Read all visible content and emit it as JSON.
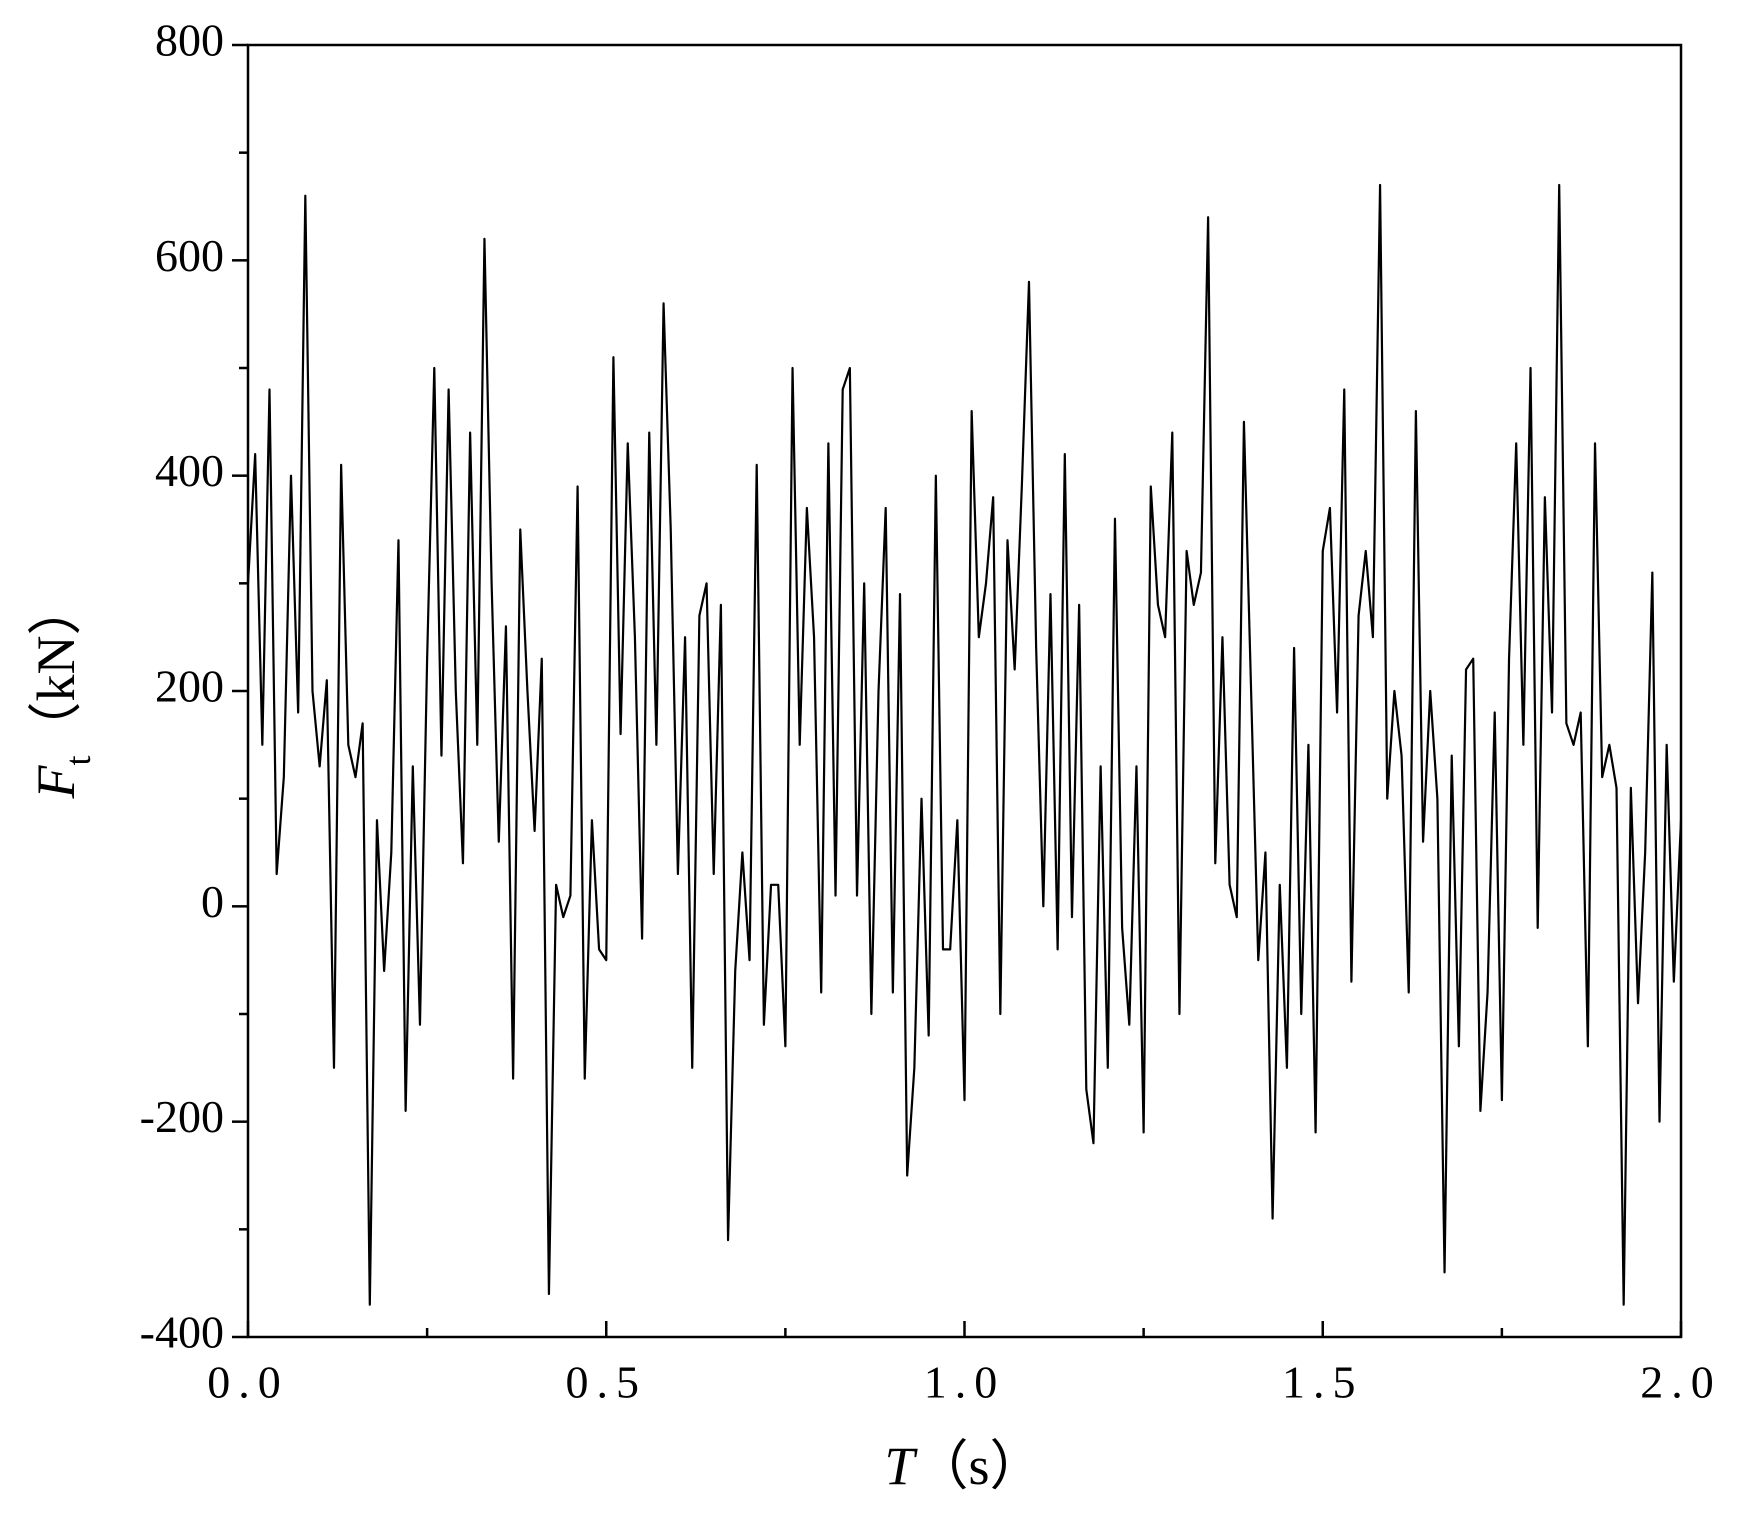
{
  "chart_data": {
    "type": "line",
    "xlabel_symbol": "T",
    "xlabel_unit": "（s）",
    "ylabel_symbol": "F",
    "ylabel_subscript": "t",
    "ylabel_unit": "（kN）",
    "color": "#000000",
    "xlim": [
      0,
      2
    ],
    "ylim": [
      -400,
      800
    ],
    "xticks": [
      {
        "value": 0,
        "label": "0.0"
      },
      0.5,
      {
        "value": 1,
        "label": "1.0"
      },
      1.5,
      {
        "value": 2,
        "label": "2.0"
      }
    ],
    "xminorticks": [
      0.25,
      0.75,
      1.25,
      1.75
    ],
    "yticks": [
      -400,
      -200,
      0,
      200,
      400,
      600,
      800
    ],
    "yminorticks": [
      -300,
      -100,
      100,
      300,
      500,
      700
    ],
    "grid": false,
    "x": [
      0,
      0.01,
      0.02,
      0.03,
      0.04,
      0.05,
      0.06,
      0.07,
      0.08,
      0.09,
      0.1,
      0.11,
      0.12,
      0.13,
      0.14,
      0.15,
      0.16,
      0.17,
      0.18,
      0.19,
      0.2,
      0.21,
      0.22,
      0.23,
      0.24,
      0.25,
      0.26,
      0.27,
      0.28,
      0.29,
      0.3,
      0.31,
      0.32,
      0.33,
      0.34,
      0.35,
      0.36,
      0.37,
      0.38,
      0.39,
      0.4,
      0.41,
      0.42,
      0.43,
      0.44,
      0.45,
      0.46,
      0.47,
      0.48,
      0.49,
      0.5,
      0.51,
      0.52,
      0.53,
      0.54,
      0.55,
      0.56,
      0.57,
      0.58,
      0.59,
      0.6,
      0.61,
      0.62,
      0.63,
      0.64,
      0.65,
      0.66,
      0.67,
      0.68,
      0.69,
      0.7,
      0.71,
      0.72,
      0.73,
      0.74,
      0.75,
      0.76,
      0.77,
      0.78,
      0.79,
      0.8,
      0.81,
      0.82,
      0.83,
      0.84,
      0.85,
      0.86,
      0.87,
      0.88,
      0.89,
      0.9,
      0.91,
      0.92,
      0.93,
      0.94,
      0.95,
      0.96,
      0.97,
      0.98,
      0.99,
      1,
      1.01,
      1.02,
      1.03,
      1.04,
      1.05,
      1.06,
      1.07,
      1.08,
      1.09,
      1.1,
      1.11,
      1.12,
      1.13,
      1.14,
      1.15,
      1.16,
      1.17,
      1.18,
      1.19,
      1.2,
      1.21,
      1.22,
      1.23,
      1.24,
      1.25,
      1.26,
      1.27,
      1.28,
      1.29,
      1.3,
      1.31,
      1.32,
      1.33,
      1.34,
      1.35,
      1.36,
      1.37,
      1.38,
      1.39,
      1.4,
      1.41,
      1.42,
      1.43,
      1.44,
      1.45,
      1.46,
      1.47,
      1.48,
      1.49,
      1.5,
      1.51,
      1.52,
      1.53,
      1.54,
      1.55,
      1.56,
      1.57,
      1.58,
      1.59,
      1.6,
      1.61,
      1.62,
      1.63,
      1.64,
      1.65,
      1.66,
      1.67,
      1.68,
      1.69,
      1.7,
      1.71,
      1.72,
      1.73,
      1.74,
      1.75,
      1.76,
      1.77,
      1.78,
      1.79,
      1.8,
      1.81,
      1.82,
      1.83,
      1.84,
      1.85,
      1.86,
      1.87,
      1.88,
      1.89,
      1.9,
      1.91,
      1.92,
      1.93,
      1.94,
      1.95,
      1.96,
      1.97,
      1.98,
      1.99,
      2
    ],
    "values": [
      300,
      420,
      150,
      480,
      30,
      120,
      400,
      180,
      660,
      200,
      130,
      210,
      -150,
      410,
      150,
      120,
      170,
      -370,
      80,
      -60,
      50,
      340,
      -190,
      130,
      -110,
      230,
      500,
      140,
      480,
      200,
      40,
      440,
      150,
      620,
      300,
      60,
      260,
      -160,
      350,
      200,
      70,
      230,
      -360,
      20,
      -10,
      10,
      390,
      -160,
      80,
      -40,
      -50,
      510,
      160,
      430,
      250,
      -30,
      440,
      150,
      560,
      350,
      30,
      250,
      -150,
      270,
      300,
      30,
      280,
      -310,
      -60,
      50,
      -50,
      410,
      -110,
      20,
      20,
      -130,
      500,
      150,
      370,
      250,
      -80,
      430,
      10,
      480,
      500,
      10,
      300,
      -100,
      200,
      370,
      -80,
      290,
      -250,
      -150,
      100,
      -120,
      400,
      -40,
      -40,
      80,
      -180,
      460,
      250,
      300,
      380,
      -100,
      340,
      220,
      390,
      580,
      240,
      0,
      290,
      -40,
      420,
      -10,
      280,
      -170,
      -220,
      130,
      -150,
      360,
      -20,
      -110,
      130,
      -210,
      390,
      280,
      250,
      440,
      -100,
      330,
      280,
      310,
      640,
      40,
      250,
      20,
      -10,
      450,
      200,
      -50,
      50,
      -290,
      20,
      -150,
      240,
      -100,
      150,
      -210,
      330,
      370,
      180,
      480,
      -70,
      270,
      330,
      250,
      670,
      100,
      200,
      140,
      -80,
      460,
      60,
      200,
      100,
      -340,
      140,
      -130,
      220,
      230,
      -190,
      -80,
      180,
      -180,
      230,
      430,
      150,
      500,
      -20,
      380,
      180,
      670,
      170,
      150,
      180,
      -130,
      430,
      120,
      150,
      110,
      -370,
      110,
      -90,
      50,
      310,
      -200,
      150,
      -70,
      80
    ]
  }
}
